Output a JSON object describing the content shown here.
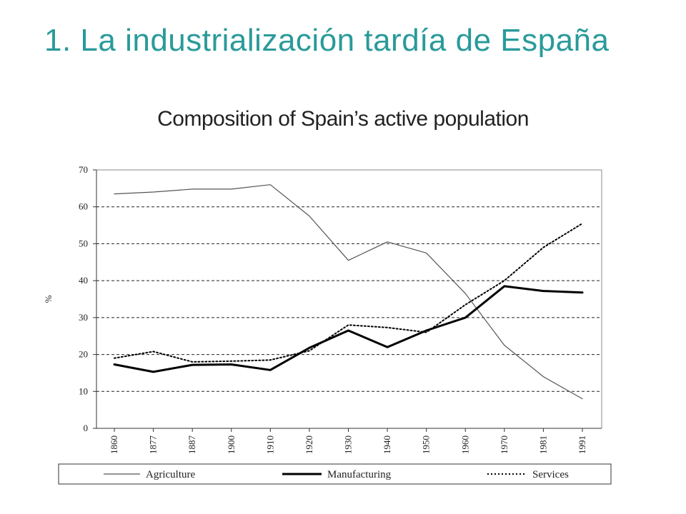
{
  "slide": {
    "title": "1. La industrialización tardía de España"
  },
  "chart_data": {
    "type": "line",
    "title": "Composition of Spain’s active population",
    "xlabel": "",
    "ylabel": "%",
    "ylim": [
      0,
      70
    ],
    "yticks": [
      0,
      10,
      20,
      30,
      40,
      50,
      60,
      70
    ],
    "categories": [
      "1860",
      "1877",
      "1887",
      "1900",
      "1910",
      "1920",
      "1930",
      "1940",
      "1950",
      "1960",
      "1970",
      "1981",
      "1991"
    ],
    "grid": "horizontal-dashed",
    "legend_position": "bottom",
    "series": [
      {
        "name": "Agriculture",
        "style": "thin-solid",
        "color": "#555555",
        "values": [
          63.5,
          64,
          64.8,
          64.8,
          66,
          57.5,
          45.5,
          50.5,
          47.5,
          36.5,
          22.5,
          14,
          8
        ]
      },
      {
        "name": "Manufacturing",
        "style": "thick-solid",
        "color": "#000000",
        "values": [
          17.3,
          15.3,
          17.2,
          17.3,
          15.8,
          21.8,
          26.5,
          22,
          26.5,
          30,
          38.5,
          37.2,
          36.8
        ]
      },
      {
        "name": "Services",
        "style": "dotted",
        "color": "#000000",
        "values": [
          19,
          20.8,
          18,
          18.2,
          18.5,
          21,
          28,
          27.3,
          26,
          33.5,
          40,
          49,
          55.5
        ]
      }
    ]
  }
}
